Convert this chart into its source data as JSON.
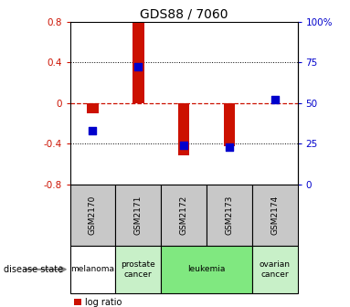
{
  "title": "GDS88 / 7060",
  "categories": [
    "GSM2170",
    "GSM2171",
    "GSM2172",
    "GSM2173",
    "GSM2174"
  ],
  "log_ratios": [
    -0.1,
    0.79,
    -0.52,
    -0.43,
    0.0
  ],
  "percentile_ranks": [
    33,
    72,
    24,
    23,
    52
  ],
  "disease_states": [
    "melanoma",
    "prostate cancer",
    "leukemia",
    "leukemia",
    "ovarian cancer"
  ],
  "disease_colors": {
    "melanoma": "#ffffff",
    "prostate cancer": "#c8f0c8",
    "leukemia": "#80e880",
    "ovarian cancer": "#c8f0c8"
  },
  "bar_color": "#cc1100",
  "percentile_color": "#0000cc",
  "ylim": [
    -0.8,
    0.8
  ],
  "percentile_ylim": [
    0,
    100
  ],
  "y_ticks_left": [
    -0.8,
    -0.4,
    0,
    0.4,
    0.8
  ],
  "y_ticks_right": [
    0,
    25,
    50,
    75,
    100
  ],
  "zero_line_color": "#cc1100",
  "bar_width": 0.25,
  "percentile_marker_size": 30,
  "disease_label": "disease state"
}
